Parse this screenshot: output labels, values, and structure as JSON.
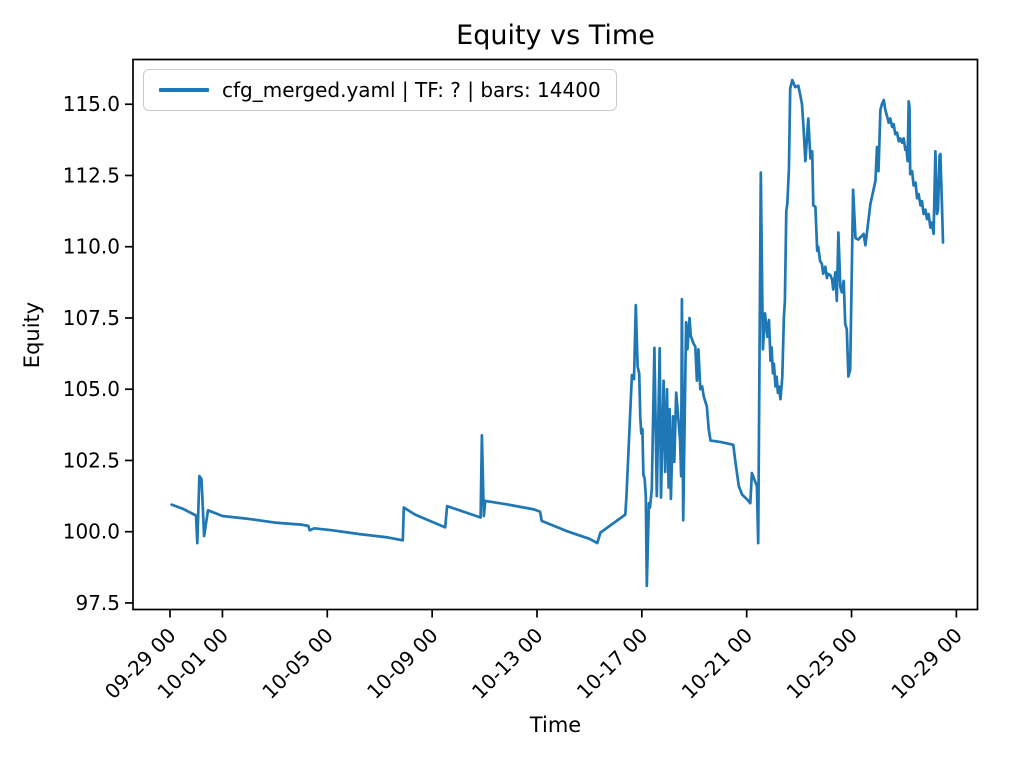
{
  "chart_data": {
    "type": "line",
    "title": "Equity vs Time",
    "xlabel": "Time",
    "ylabel": "Equity",
    "grid": false,
    "legend_position": "upper left",
    "line_color": "#1f77b4",
    "background_color": "#ffffff",
    "x_axis": {
      "unit": "days since tick 09-29 00",
      "range": [
        -1.412,
        30.806
      ],
      "ticks": [
        {
          "t": 0,
          "label": "09-29 00"
        },
        {
          "t": 2,
          "label": "10-01 00"
        },
        {
          "t": 6,
          "label": "10-05 00"
        },
        {
          "t": 10,
          "label": "10-09 00"
        },
        {
          "t": 14,
          "label": "10-13 00"
        },
        {
          "t": 18,
          "label": "10-17 00"
        },
        {
          "t": 22,
          "label": "10-21 00"
        },
        {
          "t": 26,
          "label": "10-25 00"
        },
        {
          "t": 30,
          "label": "10-29 00"
        }
      ],
      "tick_rotation_deg": 45
    },
    "y_axis": {
      "range": [
        97.27,
        116.57
      ],
      "ticks": [
        97.5,
        100.0,
        102.5,
        105.0,
        107.5,
        110.0,
        112.5,
        115.0
      ]
    },
    "series": [
      {
        "name": "cfg_merged.yaml | TF: ? | bars: 14400",
        "color": "#1f77b4",
        "points": [
          [
            0.06,
            100.95
          ],
          [
            0.5,
            100.8
          ],
          [
            0.99,
            100.57
          ],
          [
            1.04,
            99.6
          ],
          [
            1.12,
            101.95
          ],
          [
            1.2,
            101.85
          ],
          [
            1.3,
            99.85
          ],
          [
            1.45,
            100.75
          ],
          [
            2.0,
            100.55
          ],
          [
            3.0,
            100.45
          ],
          [
            4.0,
            100.32
          ],
          [
            5.0,
            100.25
          ],
          [
            5.28,
            100.2
          ],
          [
            5.33,
            100.05
          ],
          [
            5.5,
            100.12
          ],
          [
            6.2,
            100.05
          ],
          [
            7.2,
            99.92
          ],
          [
            8.3,
            99.8
          ],
          [
            8.88,
            99.7
          ],
          [
            8.92,
            100.85
          ],
          [
            9.35,
            100.6
          ],
          [
            10.5,
            100.15
          ],
          [
            10.57,
            100.9
          ],
          [
            11.85,
            100.5
          ],
          [
            11.9,
            103.38
          ],
          [
            11.97,
            100.55
          ],
          [
            12.03,
            101.08
          ],
          [
            12.9,
            100.95
          ],
          [
            13.9,
            100.78
          ],
          [
            14.12,
            100.7
          ],
          [
            14.18,
            100.38
          ],
          [
            15.2,
            100.0
          ],
          [
            16.0,
            99.75
          ],
          [
            16.3,
            99.6
          ],
          [
            16.42,
            99.97
          ],
          [
            17.37,
            100.6
          ],
          [
            17.41,
            101.2
          ],
          [
            17.62,
            105.5
          ],
          [
            17.7,
            105.35
          ],
          [
            17.77,
            107.95
          ],
          [
            17.84,
            105.8
          ],
          [
            17.9,
            105.55
          ],
          [
            17.94,
            104.0
          ],
          [
            17.98,
            103.45
          ],
          [
            18.02,
            103.6
          ],
          [
            18.06,
            102.0
          ],
          [
            18.11,
            101.85
          ],
          [
            18.15,
            101.25
          ],
          [
            18.19,
            98.1
          ],
          [
            18.27,
            101.0
          ],
          [
            18.31,
            100.85
          ],
          [
            18.38,
            101.5
          ],
          [
            18.48,
            106.45
          ],
          [
            18.57,
            101.25
          ],
          [
            18.68,
            106.44
          ],
          [
            18.73,
            101.2
          ],
          [
            18.83,
            105.3
          ],
          [
            18.89,
            102.1
          ],
          [
            18.96,
            105.0
          ],
          [
            19.02,
            101.55
          ],
          [
            19.06,
            104.3
          ],
          [
            19.11,
            101.15
          ],
          [
            19.19,
            104.05
          ],
          [
            19.24,
            102.45
          ],
          [
            19.31,
            104.88
          ],
          [
            19.46,
            103.2
          ],
          [
            19.5,
            101.95
          ],
          [
            19.53,
            108.16
          ],
          [
            19.58,
            100.4
          ],
          [
            19.69,
            107.35
          ],
          [
            19.74,
            106.4
          ],
          [
            19.82,
            107.5
          ],
          [
            19.87,
            106.87
          ],
          [
            19.97,
            106.6
          ],
          [
            20.04,
            106.5
          ],
          [
            20.1,
            105.3
          ],
          [
            20.16,
            106.4
          ],
          [
            20.23,
            105.0
          ],
          [
            20.3,
            105.1
          ],
          [
            20.36,
            104.75
          ],
          [
            20.48,
            104.4
          ],
          [
            20.55,
            103.6
          ],
          [
            20.62,
            103.2
          ],
          [
            20.99,
            103.15
          ],
          [
            21.26,
            103.1
          ],
          [
            21.49,
            103.05
          ],
          [
            21.56,
            102.53
          ],
          [
            21.64,
            102.0
          ],
          [
            21.7,
            101.6
          ],
          [
            21.83,
            101.3
          ],
          [
            22.02,
            101.13
          ],
          [
            22.14,
            101.0
          ],
          [
            22.2,
            102.06
          ],
          [
            22.39,
            101.6
          ],
          [
            22.44,
            99.6
          ],
          [
            22.54,
            112.6
          ],
          [
            22.62,
            106.4
          ],
          [
            22.7,
            107.66
          ],
          [
            22.79,
            106.84
          ],
          [
            22.85,
            107.43
          ],
          [
            22.91,
            106.0
          ],
          [
            22.95,
            106.47
          ],
          [
            23.0,
            105.56
          ],
          [
            23.04,
            105.9
          ],
          [
            23.1,
            105.1
          ],
          [
            23.14,
            105.44
          ],
          [
            23.19,
            104.87
          ],
          [
            23.23,
            105.1
          ],
          [
            23.29,
            104.65
          ],
          [
            23.36,
            105.44
          ],
          [
            23.42,
            107.54
          ],
          [
            23.46,
            108.1
          ],
          [
            23.51,
            111.26
          ],
          [
            23.55,
            111.5
          ],
          [
            23.61,
            112.7
          ],
          [
            23.66,
            115.55
          ],
          [
            23.74,
            115.85
          ],
          [
            23.85,
            115.6
          ],
          [
            23.97,
            115.65
          ],
          [
            24.05,
            115.3
          ],
          [
            24.11,
            115.0
          ],
          [
            24.16,
            114.3
          ],
          [
            24.24,
            113.0
          ],
          [
            24.35,
            114.5
          ],
          [
            24.43,
            113.1
          ],
          [
            24.5,
            113.35
          ],
          [
            24.54,
            111.45
          ],
          [
            24.62,
            111.4
          ],
          [
            24.69,
            109.86
          ],
          [
            24.73,
            110.0
          ],
          [
            24.8,
            109.5
          ],
          [
            24.87,
            109.4
          ],
          [
            24.92,
            109.05
          ],
          [
            25.0,
            109.3
          ],
          [
            25.06,
            108.9
          ],
          [
            25.1,
            109.05
          ],
          [
            25.19,
            109.0
          ],
          [
            25.26,
            108.85
          ],
          [
            25.3,
            108.5
          ],
          [
            25.38,
            109.1
          ],
          [
            25.44,
            108.1
          ],
          [
            25.5,
            110.5
          ],
          [
            25.57,
            108.6
          ],
          [
            25.63,
            108.4
          ],
          [
            25.7,
            108.8
          ],
          [
            25.76,
            107.3
          ],
          [
            25.82,
            107.1
          ],
          [
            25.88,
            105.45
          ],
          [
            25.95,
            105.7
          ],
          [
            26.06,
            112.0
          ],
          [
            26.15,
            110.3
          ],
          [
            26.26,
            110.25
          ],
          [
            26.46,
            110.45
          ],
          [
            26.53,
            110.05
          ],
          [
            26.72,
            111.5
          ],
          [
            26.91,
            112.3
          ],
          [
            26.97,
            113.5
          ],
          [
            27.03,
            112.65
          ],
          [
            27.1,
            114.8
          ],
          [
            27.16,
            115.0
          ],
          [
            27.23,
            115.15
          ],
          [
            27.29,
            114.8
          ],
          [
            27.35,
            114.6
          ],
          [
            27.42,
            114.35
          ],
          [
            27.48,
            114.5
          ],
          [
            27.55,
            114.2
          ],
          [
            27.61,
            114.3
          ],
          [
            27.67,
            113.95
          ],
          [
            27.74,
            114.0
          ],
          [
            27.8,
            113.7
          ],
          [
            27.86,
            113.8
          ],
          [
            27.93,
            113.65
          ],
          [
            27.99,
            113.8
          ],
          [
            28.05,
            113.4
          ],
          [
            28.09,
            113.5
          ],
          [
            28.14,
            113.0
          ],
          [
            28.18,
            115.1
          ],
          [
            28.21,
            114.9
          ],
          [
            28.24,
            112.55
          ],
          [
            28.31,
            112.65
          ],
          [
            28.37,
            112.15
          ],
          [
            28.44,
            112.25
          ],
          [
            28.5,
            111.7
          ],
          [
            28.56,
            111.85
          ],
          [
            28.63,
            111.45
          ],
          [
            28.69,
            111.6
          ],
          [
            28.75,
            111.15
          ],
          [
            28.82,
            111.3
          ],
          [
            28.88,
            110.97
          ],
          [
            28.94,
            111.15
          ],
          [
            29.01,
            110.67
          ],
          [
            29.07,
            110.85
          ],
          [
            29.13,
            110.45
          ],
          [
            29.2,
            113.35
          ],
          [
            29.26,
            111.15
          ],
          [
            29.3,
            111.3
          ],
          [
            29.36,
            113.2
          ],
          [
            29.39,
            113.25
          ],
          [
            29.45,
            111.4
          ],
          [
            29.49,
            110.15
          ]
        ]
      }
    ]
  }
}
